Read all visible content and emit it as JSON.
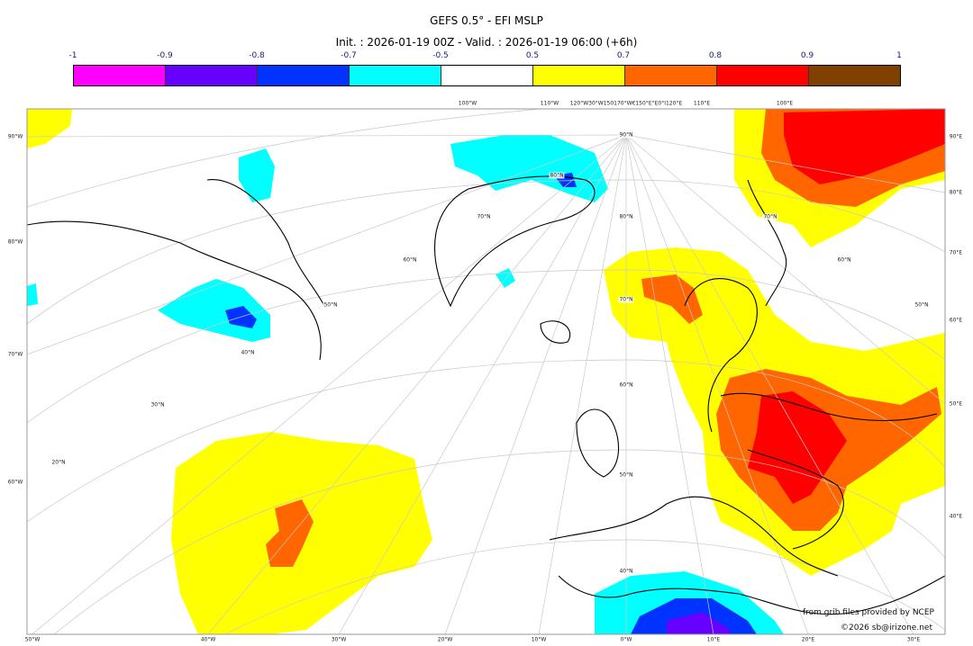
{
  "title": "GEFS 0.5° - EFI MSLP",
  "subtitle": "Init. : 2026-01-19 00Z - Valid. : 2026-01-19 06:00 (+6h)",
  "colorbar": {
    "ticks": [
      "-1",
      "-0.9",
      "-0.8",
      "-0.7",
      "-0.5",
      "0.5",
      "0.7",
      "0.8",
      "0.9",
      "1"
    ],
    "colors": [
      "#ff00ff",
      "#6600ff",
      "#0033ff",
      "#00ffff",
      "#ffffff",
      "#ffff00",
      "#ff6600",
      "#ff0000",
      "#804000"
    ]
  },
  "axes": {
    "left": [
      "90°W",
      "80°W",
      "70°W",
      "60°W"
    ],
    "right": [
      "90°E",
      "80°E",
      "70°E",
      "60°E",
      "50°E",
      "40°E"
    ],
    "bottom": [
      "50°W",
      "40°W",
      "30°W",
      "20°W",
      "10°W",
      "0°W",
      "10°E",
      "20°E",
      "30°E"
    ],
    "top": [
      "100°W",
      "110°W",
      "120°W30°W150170°W€150°E°E0°I120°E",
      "110°E",
      "100°E"
    ],
    "inner": [
      "90°N",
      "80°N",
      "80°N",
      "70°N",
      "60°N",
      "50°N",
      "40°N",
      "30°N",
      "20°N",
      "70°N",
      "60°N",
      "50°N",
      "70°N",
      "60°N",
      "50°N",
      "40°N"
    ]
  },
  "credits": {
    "source": "from grib files provided by NCEP",
    "copyright": "©2026 sb@irizone.net"
  }
}
